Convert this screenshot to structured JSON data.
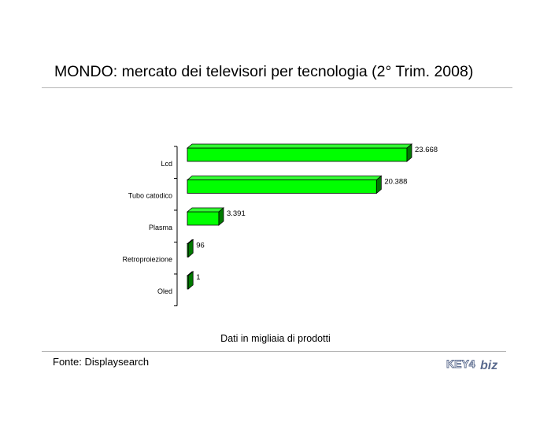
{
  "title": "MONDO: mercato dei televisori per tecnologia (2° Trim. 2008)",
  "note": "Dati in migliaia di prodotti",
  "source": "Fonte: Displaysearch",
  "logo": {
    "text_left": "KEY4",
    "text_right": "biz"
  },
  "colors": {
    "bar_front": "#00ff00",
    "bar_top": "#33ff33",
    "bar_side": "#007a00",
    "rule": "#b5b5b5",
    "logo": "#5a6a8e"
  },
  "chart_data": {
    "type": "bar",
    "orientation": "horizontal",
    "categories": [
      "Lcd",
      "Tubo catodico",
      "Plasma",
      "Retroproiezione",
      "Oled"
    ],
    "values": [
      23668,
      20388,
      3391,
      96,
      1
    ],
    "value_labels": [
      "23.668",
      "20.388",
      "3.391",
      "96",
      "1"
    ],
    "xlim": [
      0,
      23668
    ],
    "grid": false,
    "legend": "none"
  }
}
